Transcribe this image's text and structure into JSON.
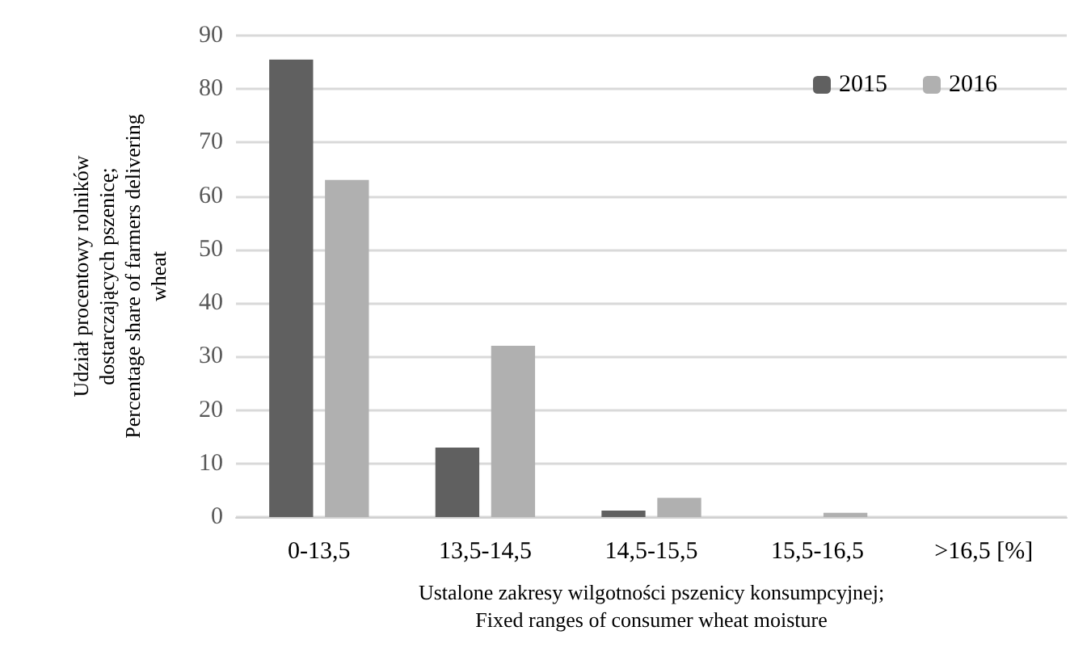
{
  "chart_data": {
    "type": "bar",
    "categories": [
      "0-13,5",
      "13,5-14,5",
      "14,5-15,5",
      "15,5-16,5",
      ">16,5 [%]"
    ],
    "series": [
      {
        "name": "2015",
        "color": "#606060",
        "values": [
          85.5,
          13,
          1.2,
          0,
          0
        ]
      },
      {
        "name": "2016",
        "color": "#b0b0b0",
        "values": [
          63,
          32,
          3.6,
          0.8,
          0
        ]
      }
    ],
    "xlabel": "Ustalone zakresy wilgotności pszenicy konsumpcyjnej;\nFixed ranges of consumer wheat moisture",
    "ylabel": "Udział procentowy rolników\ndostarczających pszenicę;\nPercentage share of farmers delivering\nwheat",
    "ylim": [
      0,
      90
    ],
    "yticks": [
      0,
      10,
      20,
      30,
      40,
      50,
      60,
      70,
      80,
      90
    ],
    "grid": "y",
    "legend": "top right"
  }
}
